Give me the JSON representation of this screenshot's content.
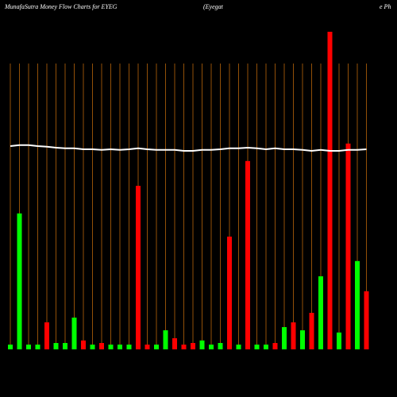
{
  "chart_data": {
    "type": "bar",
    "title": "MunafaSutra  Money Flow  Charts for EYEG",
    "subtitle": "(Eyegat",
    "subtitle_tail": "e  Ph",
    "categories": [
      null,
      null,
      null,
      null,
      null,
      null,
      null,
      null,
      null,
      null,
      null,
      null,
      null,
      null,
      null,
      null,
      null,
      null,
      null,
      null,
      null,
      null,
      null,
      null,
      null,
      null,
      null,
      null,
      null,
      null,
      null,
      null,
      null,
      null,
      null,
      null,
      null,
      null,
      null,
      null
    ],
    "series": [
      {
        "values": [
          1.5,
          42.8,
          1.5,
          1.5,
          8.5,
          2,
          2,
          10,
          2.8,
          1.5,
          2,
          1.5,
          1.5,
          1.5,
          51.5,
          1.5,
          1.5,
          6,
          3.5,
          1.5,
          2,
          2.8,
          1.5,
          2,
          35.5,
          1.5,
          59.3,
          1.5,
          1.5,
          2,
          7,
          8.5,
          6,
          11.5,
          23,
          100,
          5.3,
          64.8,
          27.8,
          18.3
        ],
        "colors": [
          "#00ff00",
          "#00ff00",
          "#00ff00",
          "#00ff00",
          "#ff0000",
          "#00ff00",
          "#00ff00",
          "#00ff00",
          "#ff0000",
          "#00ff00",
          "#ff0000",
          "#00ff00",
          "#00ff00",
          "#00ff00",
          "#ff0000",
          "#ff0000",
          "#00ff00",
          "#00ff00",
          "#ff0000",
          "#ff0000",
          "#ff0000",
          "#00ff00",
          "#00ff00",
          "#00ff00",
          "#ff0000",
          "#00ff00",
          "#ff0000",
          "#00ff00",
          "#00ff00",
          "#ff0000",
          "#00ff00",
          "#ff0000",
          "#00ff00",
          "#ff0000",
          "#00ff00",
          "#ff0000",
          "#00ff00",
          "#ff0000",
          "#00ff00",
          "#ff0000"
        ]
      },
      {
        "type": "line",
        "color": "#ffffff",
        "values": [
          64,
          64.3,
          64.3,
          64,
          63.8,
          63.5,
          63.3,
          63.3,
          63,
          63,
          62.8,
          63,
          62.8,
          63,
          63.3,
          63,
          62.8,
          62.8,
          62.8,
          62.5,
          62.5,
          62.8,
          62.8,
          63,
          63.3,
          63.3,
          63.5,
          63.3,
          63,
          63.3,
          63,
          63,
          62.8,
          62.5,
          62.8,
          62.5,
          62.5,
          62.8,
          62.8,
          63
        ]
      }
    ],
    "ylim": [
      0,
      100
    ],
    "grid_color": "#b8650a"
  }
}
